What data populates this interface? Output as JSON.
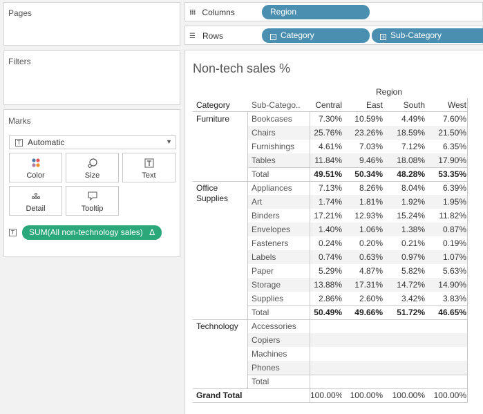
{
  "pages": {
    "title": "Pages"
  },
  "filters": {
    "title": "Filters"
  },
  "marks": {
    "title": "Marks",
    "mark_type": "Automatic",
    "mark_type_icon": "T",
    "buttons": [
      {
        "label": "Color",
        "icon": "color-dots-icon"
      },
      {
        "label": "Size",
        "icon": "size-icon"
      },
      {
        "label": "Text",
        "icon": "text-icon"
      },
      {
        "label": "Detail",
        "icon": "detail-icon"
      },
      {
        "label": "Tooltip",
        "icon": "tooltip-icon"
      }
    ],
    "pill_icon": "T",
    "pill_label": "SUM(All non-technology sales)",
    "pill_delta": "Δ",
    "pill_color": "#2aa879"
  },
  "shelves": {
    "columns_label": "Columns",
    "rows_label": "Rows",
    "columns_pills": [
      {
        "label": "Region"
      }
    ],
    "rows_pills": [
      {
        "label": "Category",
        "icon": "⊟"
      },
      {
        "label": "Sub-Category",
        "icon": "⊞"
      }
    ],
    "pill_color": "#4b8fb0"
  },
  "view": {
    "title": "Non-tech sales %",
    "region_header": "Region",
    "headers": {
      "category": "Category",
      "sub_category": "Sub-Catego..",
      "regions": [
        "Central",
        "East",
        "South",
        "West"
      ]
    },
    "groups": [
      {
        "category": "Furniture",
        "rows": [
          {
            "sub": "Bookcases",
            "values": [
              "7.30%",
              "10.59%",
              "4.49%",
              "7.60%"
            ]
          },
          {
            "sub": "Chairs",
            "values": [
              "25.76%",
              "23.26%",
              "18.59%",
              "21.50%"
            ]
          },
          {
            "sub": "Furnishings",
            "values": [
              "4.61%",
              "7.03%",
              "7.12%",
              "6.35%"
            ]
          },
          {
            "sub": "Tables",
            "values": [
              "11.84%",
              "9.46%",
              "18.08%",
              "17.90%"
            ]
          }
        ],
        "total": {
          "label": "Total",
          "values": [
            "49.51%",
            "50.34%",
            "48.28%",
            "53.35%"
          ]
        }
      },
      {
        "category": "Office\nSupplies",
        "rows": [
          {
            "sub": "Appliances",
            "values": [
              "7.13%",
              "8.26%",
              "8.04%",
              "6.39%"
            ]
          },
          {
            "sub": "Art",
            "values": [
              "1.74%",
              "1.81%",
              "1.92%",
              "1.95%"
            ]
          },
          {
            "sub": "Binders",
            "values": [
              "17.21%",
              "12.93%",
              "15.24%",
              "11.82%"
            ]
          },
          {
            "sub": "Envelopes",
            "values": [
              "1.40%",
              "1.06%",
              "1.38%",
              "0.87%"
            ]
          },
          {
            "sub": "Fasteners",
            "values": [
              "0.24%",
              "0.20%",
              "0.21%",
              "0.19%"
            ]
          },
          {
            "sub": "Labels",
            "values": [
              "0.74%",
              "0.63%",
              "0.97%",
              "1.07%"
            ]
          },
          {
            "sub": "Paper",
            "values": [
              "5.29%",
              "4.87%",
              "5.82%",
              "5.63%"
            ]
          },
          {
            "sub": "Storage",
            "values": [
              "13.88%",
              "17.31%",
              "14.72%",
              "14.90%"
            ]
          },
          {
            "sub": "Supplies",
            "values": [
              "2.86%",
              "2.60%",
              "3.42%",
              "3.83%"
            ]
          }
        ],
        "total": {
          "label": "Total",
          "values": [
            "50.49%",
            "49.66%",
            "51.72%",
            "46.65%"
          ]
        }
      },
      {
        "category": "Technology",
        "rows": [
          {
            "sub": "Accessories",
            "values": [
              "",
              "",
              "",
              ""
            ]
          },
          {
            "sub": "Copiers",
            "values": [
              "",
              "",
              "",
              ""
            ]
          },
          {
            "sub": "Machines",
            "values": [
              "",
              "",
              "",
              ""
            ]
          },
          {
            "sub": "Phones",
            "values": [
              "",
              "",
              "",
              ""
            ]
          }
        ],
        "total": {
          "label": "Total",
          "values": [
            "",
            "",
            "",
            ""
          ]
        }
      }
    ],
    "grand_total": {
      "label": "Grand Total",
      "values": [
        "100.00%",
        "100.00%",
        "100.00%",
        "100.00%"
      ]
    }
  }
}
